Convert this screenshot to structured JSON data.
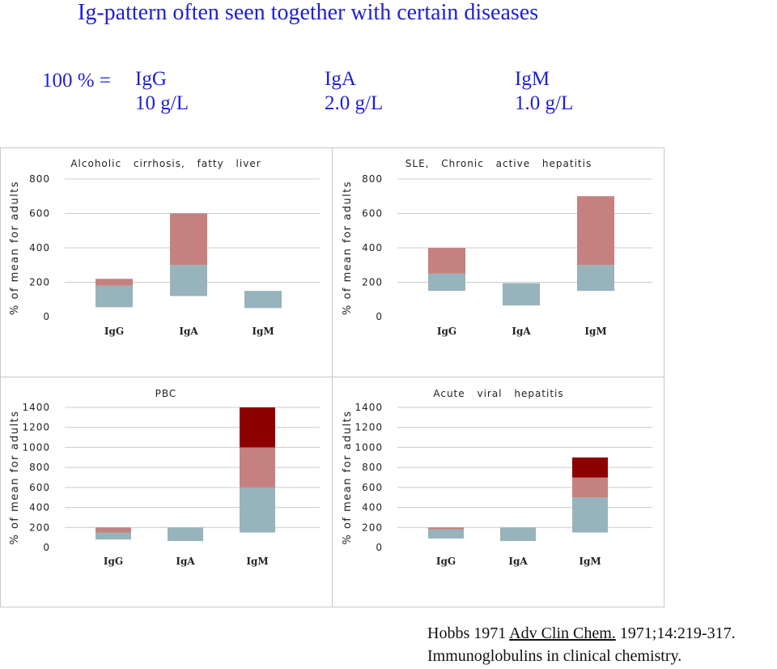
{
  "title": "Ig-pattern often seen together with certain diseases",
  "reference": {
    "label": "100 % =",
    "items": [
      {
        "name": "IgG",
        "value": "10 g/L"
      },
      {
        "name": "IgA",
        "value": "2.0 g/L"
      },
      {
        "name": "IgM",
        "value": "1.0 g/L"
      }
    ]
  },
  "citation": {
    "line1_prefix": "Hobbs 1971 ",
    "line1_journal": "Adv Clin Chem.",
    "line1_suffix": " 1971;14:219-317.",
    "line2": "Immunoglobulins in clinical chemistry."
  },
  "colors": {
    "normal_range": "#97b3bb",
    "elevated": "#c48180",
    "strongly_elevated": "#8c0000",
    "grid": "#cccccc"
  },
  "chart_data": [
    {
      "type": "bar",
      "title": "Alcoholic cirrhosis, fatty liver",
      "ylabel": "% of mean for adults",
      "ylim": [
        0,
        800
      ],
      "yticks": [
        "0",
        "200",
        "400",
        "600",
        "800"
      ],
      "categories": [
        "IgG",
        "IgA",
        "IgM"
      ],
      "bars": [
        {
          "category": "IgG",
          "segments": [
            {
              "from": 55,
              "to": 180,
              "level": "normal"
            },
            {
              "from": 180,
              "to": 220,
              "level": "elevated"
            }
          ]
        },
        {
          "category": "IgA",
          "segments": [
            {
              "from": 120,
              "to": 300,
              "level": "normal"
            },
            {
              "from": 300,
              "to": 600,
              "level": "elevated"
            }
          ]
        },
        {
          "category": "IgM",
          "segments": [
            {
              "from": 50,
              "to": 150,
              "level": "normal"
            }
          ]
        }
      ]
    },
    {
      "type": "bar",
      "title": "SLE, Chronic active hepatitis",
      "ylabel": "% of mean for adults",
      "ylim": [
        0,
        800
      ],
      "yticks": [
        "0",
        "200",
        "400",
        "600",
        "800"
      ],
      "categories": [
        "IgG",
        "IgA",
        "IgM"
      ],
      "bars": [
        {
          "category": "IgG",
          "segments": [
            {
              "from": 150,
              "to": 250,
              "level": "normal"
            },
            {
              "from": 250,
              "to": 400,
              "level": "elevated"
            }
          ]
        },
        {
          "category": "IgA",
          "segments": [
            {
              "from": 65,
              "to": 195,
              "level": "normal"
            }
          ]
        },
        {
          "category": "IgM",
          "segments": [
            {
              "from": 150,
              "to": 300,
              "level": "normal"
            },
            {
              "from": 300,
              "to": 700,
              "level": "elevated"
            }
          ]
        }
      ]
    },
    {
      "type": "bar",
      "title": "PBC",
      "ylabel": "% of mean for adults",
      "ylim": [
        0,
        1400
      ],
      "yticks": [
        "0",
        "200",
        "400",
        "600",
        "800",
        "1000",
        "1200",
        "1400"
      ],
      "categories": [
        "IgG",
        "IgA",
        "IgM"
      ],
      "bars": [
        {
          "category": "IgG",
          "segments": [
            {
              "from": 80,
              "to": 150,
              "level": "normal"
            },
            {
              "from": 150,
              "to": 200,
              "level": "elevated"
            }
          ]
        },
        {
          "category": "IgA",
          "segments": [
            {
              "from": 65,
              "to": 200,
              "level": "normal"
            }
          ]
        },
        {
          "category": "IgM",
          "segments": [
            {
              "from": 150,
              "to": 600,
              "level": "normal"
            },
            {
              "from": 600,
              "to": 1000,
              "level": "elevated"
            },
            {
              "from": 1000,
              "to": 1400,
              "level": "strongly_elevated"
            }
          ]
        }
      ]
    },
    {
      "type": "bar",
      "title": "Acute viral hepatitis",
      "ylabel": "% of mean for adults",
      "ylim": [
        0,
        1400
      ],
      "yticks": [
        "0",
        "200",
        "400",
        "600",
        "800",
        "1000",
        "1200",
        "1400"
      ],
      "categories": [
        "IgG",
        "IgA",
        "IgM"
      ],
      "bars": [
        {
          "category": "IgG",
          "segments": [
            {
              "from": 90,
              "to": 180,
              "level": "normal"
            },
            {
              "from": 180,
              "to": 200,
              "level": "elevated"
            }
          ]
        },
        {
          "category": "IgA",
          "segments": [
            {
              "from": 65,
              "to": 200,
              "level": "normal"
            }
          ]
        },
        {
          "category": "IgM",
          "segments": [
            {
              "from": 150,
              "to": 500,
              "level": "normal"
            },
            {
              "from": 500,
              "to": 700,
              "level": "elevated"
            },
            {
              "from": 700,
              "to": 900,
              "level": "strongly_elevated"
            }
          ]
        }
      ]
    }
  ]
}
